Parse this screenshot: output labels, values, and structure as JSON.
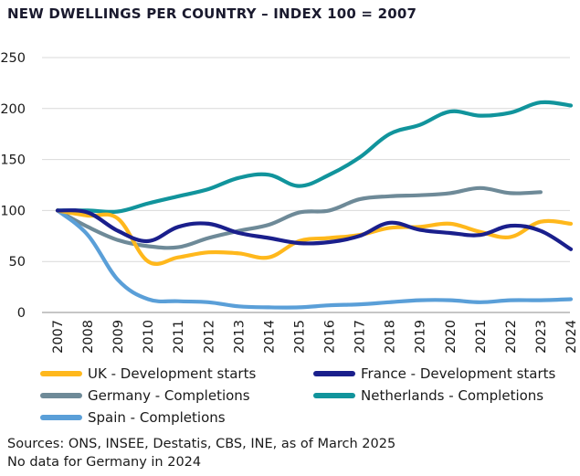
{
  "chart_data": {
    "type": "line",
    "title": "NEW DWELLINGS PER COUNTRY – INDEX 100 = 2007",
    "xlabel": "",
    "ylabel": "",
    "categories": [
      "2007",
      "2008",
      "2009",
      "2010",
      "2011",
      "2012",
      "2013",
      "2014",
      "2015",
      "2016",
      "2017",
      "2018",
      "2019",
      "2020",
      "2021",
      "2022",
      "2023",
      "2024"
    ],
    "ylim": [
      0,
      250
    ],
    "yticks": [
      0,
      50,
      100,
      150,
      200,
      250
    ],
    "grid": true,
    "legend_position": "bottom",
    "series": [
      {
        "name": "UK - Development starts",
        "color": "#FFB81C",
        "values": [
          100,
          95,
          92,
          50,
          54,
          59,
          58,
          54,
          70,
          73,
          76,
          83,
          84,
          87,
          79,
          74,
          89,
          87
        ]
      },
      {
        "name": "France - Development starts",
        "color": "#1A1F8C",
        "values": [
          100,
          98,
          80,
          70,
          84,
          87,
          78,
          73,
          68,
          69,
          75,
          88,
          81,
          78,
          76,
          85,
          80,
          62
        ]
      },
      {
        "name": "Germany - Completions",
        "color": "#6E8A98",
        "values": [
          100,
          84,
          71,
          65,
          64,
          73,
          80,
          86,
          98,
          100,
          111,
          114,
          115,
          117,
          122,
          117,
          118,
          null
        ]
      },
      {
        "name": "Netherlands - Completions",
        "color": "#11949C",
        "values": [
          100,
          100,
          99,
          107,
          114,
          121,
          132,
          135,
          124,
          135,
          152,
          175,
          184,
          197,
          193,
          196,
          206,
          203
        ]
      },
      {
        "name": "Spain - Completions",
        "color": "#5A9FD8",
        "values": [
          100,
          76,
          32,
          13,
          11,
          10,
          6,
          5,
          5,
          7,
          8,
          10,
          12,
          12,
          10,
          12,
          12,
          13
        ]
      }
    ]
  },
  "footnotes": {
    "sources": "Sources: ONS, INSEE, Destatis, CBS, INE, as of March 2025",
    "note": " No data for Germany in 2024"
  }
}
